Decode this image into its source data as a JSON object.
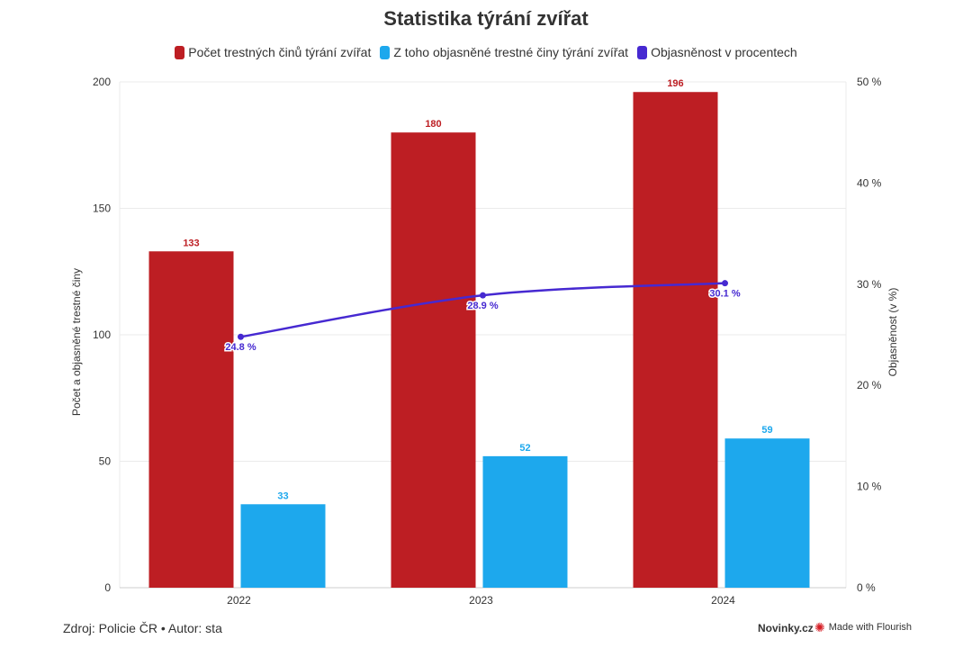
{
  "chart_data": {
    "type": "bar",
    "title": "Statistika týrání zvířat",
    "categories": [
      "2022",
      "2023",
      "2024"
    ],
    "series": [
      {
        "name": "Počet trestných činů týrání zvířat",
        "type": "bar",
        "axis": "left",
        "color": "#bd1e23",
        "values": [
          133,
          180,
          196
        ],
        "labels": [
          "133",
          "180",
          "196"
        ]
      },
      {
        "name": "Z toho objasněné trestné činy týrání zvířat",
        "type": "bar",
        "axis": "left",
        "color": "#1da8ed",
        "values": [
          33,
          52,
          59
        ],
        "labels": [
          "33",
          "52",
          "59"
        ]
      },
      {
        "name": "Objasněnost v procentech",
        "type": "line",
        "axis": "right",
        "color": "#4629d1",
        "values": [
          24.8,
          28.9,
          30.1
        ],
        "labels": [
          "24.8 %",
          "28.9 %",
          "30.1 %"
        ]
      }
    ],
    "ylabel": "Počet a objasněné trestné činy",
    "ylim": [
      0,
      200
    ],
    "yticks": [
      "0",
      "50",
      "100",
      "150",
      "200"
    ],
    "y2label": "Objasněnost (v %)",
    "y2lim": [
      0,
      50
    ],
    "y2ticks": [
      "0 %",
      "10 %",
      "20 %",
      "30 %",
      "40 %",
      "50 %"
    ],
    "grid": true,
    "legend_position": "top-center"
  },
  "footer": {
    "source": "Zdroj: Policie ČR • Autor: sta",
    "brand": "Novinky.cz",
    "flourish": "Made with Flourish"
  }
}
